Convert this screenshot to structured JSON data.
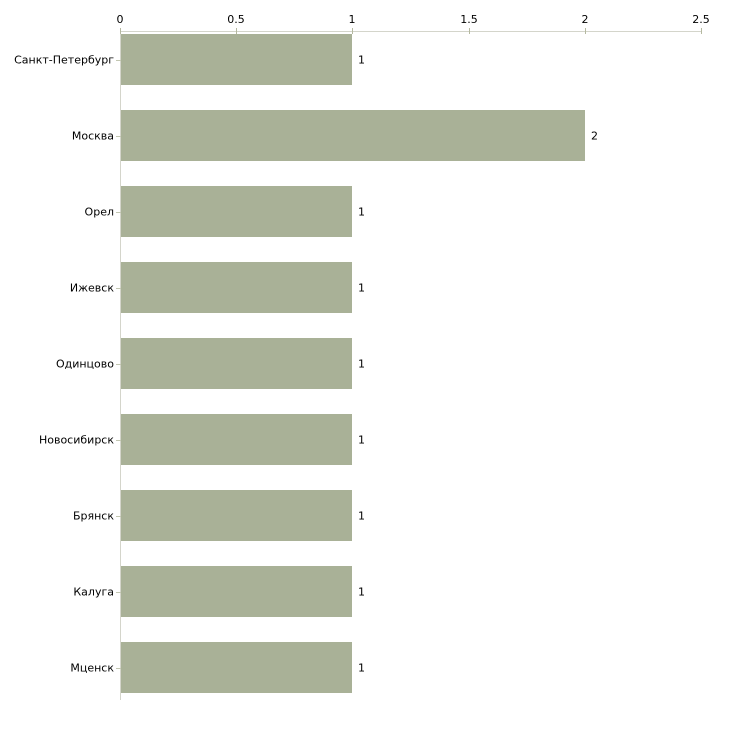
{
  "chart_data": {
    "type": "bar",
    "orientation": "horizontal",
    "title": "",
    "xlabel": "",
    "ylabel": "",
    "grid": false,
    "legend": false,
    "categories": [
      "Санкт-Петербург",
      "Москва",
      "Орел",
      "Ижевск",
      "Одинцово",
      "Новосибирск",
      "Брянск",
      "Калуга",
      "Мценск"
    ],
    "values": [
      1,
      2,
      1,
      1,
      1,
      1,
      1,
      1,
      1
    ],
    "value_labels": [
      "1",
      "2",
      "1",
      "1",
      "1",
      "1",
      "1",
      "1",
      "1"
    ],
    "x_axis": {
      "position": "top",
      "range": [
        0,
        2.5
      ],
      "ticks": [
        0,
        0.5,
        1,
        1.5,
        2,
        2.5
      ],
      "tick_labels": [
        "0",
        "0.5",
        "1",
        "1.5",
        "2",
        "2.5"
      ]
    },
    "colors": {
      "bar_fill": "#a9b197",
      "axis_line": "#d4d5cb",
      "tick_mark": "#b5b9a0",
      "text": "#000000",
      "background": "#ffffff"
    }
  }
}
